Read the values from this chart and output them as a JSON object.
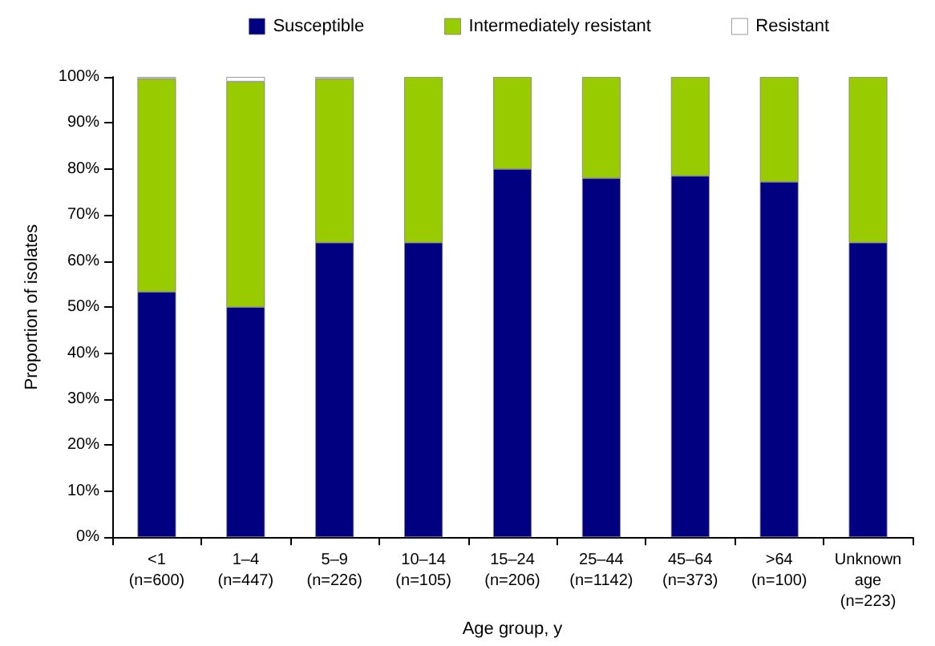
{
  "chart_data": {
    "type": "bar",
    "stacked": true,
    "xlabel": "Age group, y",
    "ylabel": "Proportion of isolates",
    "categories": [
      "<1\n(n=600)",
      "1–4\n(n=447)",
      "5–9\n(n=226)",
      "10–14\n(n=105)",
      "15–24\n(n=206)",
      "25–44\n(n=1142)",
      "45–64\n(n=373)",
      ">64\n(n=100)",
      "Unknown\nage\n(n=223)"
    ],
    "series": [
      {
        "name": "Susceptible",
        "color": "#000080",
        "values": [
          53.3,
          50,
          64,
          64,
          80,
          78,
          78.5,
          77.2,
          64
        ]
      },
      {
        "name": "Intermediately resistant",
        "color": "#99cc00",
        "values": [
          46.3,
          49,
          35.6,
          36,
          20,
          22,
          21.5,
          22.8,
          36
        ]
      },
      {
        "name": "Resistant",
        "color": "#ffffff",
        "values": [
          0.4,
          1,
          0.4,
          0,
          0,
          0,
          0,
          0,
          0
        ]
      }
    ],
    "ylim": [
      0,
      100
    ],
    "yticks": [
      {
        "value": 0,
        "label": "0%"
      },
      {
        "value": 10,
        "label": "10%"
      },
      {
        "value": 20,
        "label": "20%"
      },
      {
        "value": 30,
        "label": "30%"
      },
      {
        "value": 40,
        "label": "40%"
      },
      {
        "value": 50,
        "label": "50%"
      },
      {
        "value": 60,
        "label": "60%"
      },
      {
        "value": 70,
        "label": "70%"
      },
      {
        "value": 80,
        "label": "80%"
      },
      {
        "value": 90,
        "label": "90%"
      },
      {
        "value": 100,
        "label": "100%"
      }
    ],
    "grid": false,
    "legend": "top"
  }
}
